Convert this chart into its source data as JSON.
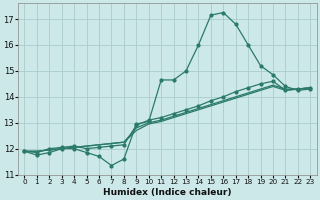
{
  "xlabel": "Humidex (Indice chaleur)",
  "background_color": "#cce8e8",
  "grid_color": "#aacccc",
  "line_color": "#2a7a6a",
  "xlim": [
    -0.5,
    23.5
  ],
  "ylim": [
    11.0,
    17.6
  ],
  "yticks": [
    11,
    12,
    13,
    14,
    15,
    16,
    17
  ],
  "xticks": [
    0,
    1,
    2,
    3,
    4,
    5,
    6,
    7,
    8,
    9,
    10,
    11,
    12,
    13,
    14,
    15,
    16,
    17,
    18,
    19,
    20,
    21,
    22,
    23
  ],
  "series1_x": [
    0,
    1,
    2,
    3,
    4,
    5,
    6,
    7,
    8,
    9,
    10,
    11,
    12,
    13,
    14,
    15,
    16,
    17,
    18,
    19,
    20,
    21,
    22,
    23
  ],
  "series1_y": [
    11.9,
    11.75,
    11.85,
    12.0,
    12.0,
    11.85,
    11.7,
    11.35,
    11.6,
    12.95,
    13.05,
    14.65,
    14.65,
    15.0,
    16.0,
    17.15,
    17.25,
    16.8,
    16.0,
    15.2,
    14.85,
    14.4,
    14.25,
    14.3
  ],
  "series2_x": [
    0,
    1,
    2,
    3,
    4,
    5,
    6,
    7,
    8,
    9,
    10,
    11,
    12,
    13,
    14,
    15,
    16,
    17,
    18,
    19,
    20,
    21,
    22,
    23
  ],
  "series2_y": [
    11.9,
    11.85,
    12.0,
    12.05,
    12.1,
    12.0,
    12.05,
    12.1,
    12.15,
    12.9,
    13.1,
    13.2,
    13.35,
    13.5,
    13.65,
    13.85,
    14.0,
    14.2,
    14.35,
    14.5,
    14.6,
    14.25,
    14.3,
    14.35
  ],
  "series3_x": [
    0,
    1,
    2,
    3,
    4,
    5,
    6,
    7,
    8,
    9,
    10,
    11,
    12,
    13,
    14,
    15,
    16,
    17,
    18,
    19,
    20,
    21,
    22,
    23
  ],
  "series3_y": [
    11.9,
    11.9,
    11.95,
    12.0,
    12.05,
    12.1,
    12.15,
    12.2,
    12.25,
    12.8,
    13.0,
    13.1,
    13.25,
    13.4,
    13.55,
    13.7,
    13.85,
    14.0,
    14.15,
    14.3,
    14.45,
    14.3,
    14.3,
    14.35
  ],
  "series4_x": [
    0,
    1,
    2,
    3,
    4,
    5,
    6,
    7,
    8,
    9,
    10,
    11,
    12,
    13,
    14,
    15,
    16,
    17,
    18,
    19,
    20,
    21,
    22,
    23
  ],
  "series4_y": [
    11.9,
    11.9,
    11.95,
    12.0,
    12.05,
    12.1,
    12.15,
    12.2,
    12.25,
    12.7,
    12.95,
    13.05,
    13.2,
    13.35,
    13.5,
    13.65,
    13.8,
    13.95,
    14.1,
    14.25,
    14.4,
    14.25,
    14.3,
    14.35
  ]
}
